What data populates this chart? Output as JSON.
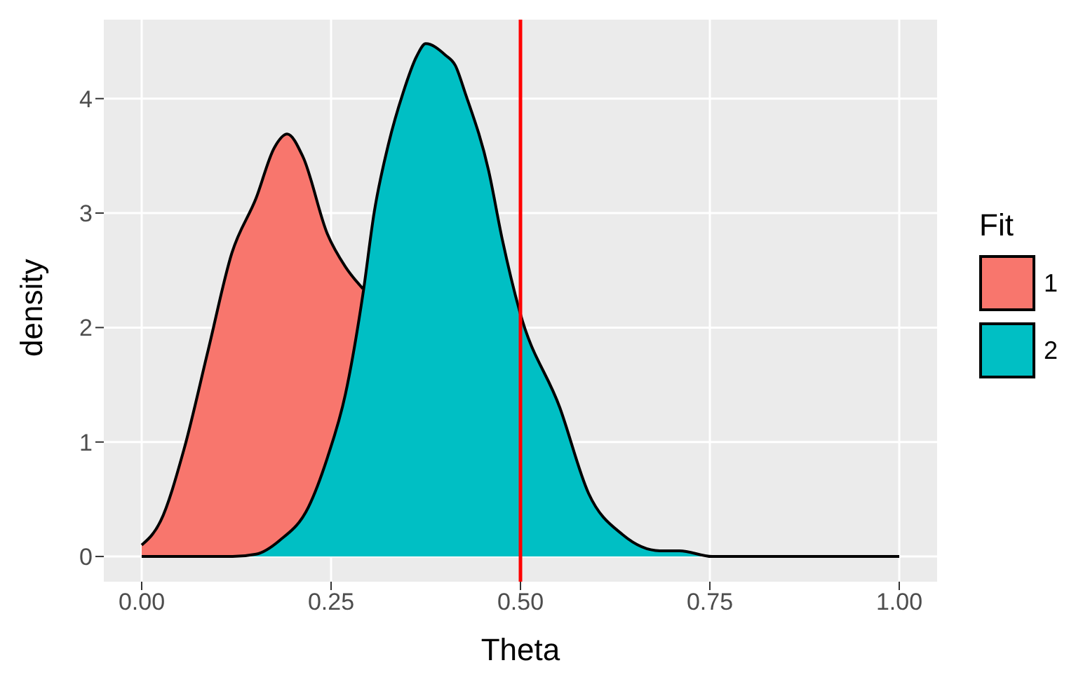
{
  "chart_data": {
    "type": "area",
    "xlabel": "Theta",
    "ylabel": "density",
    "legend_title": "Fit",
    "xlim": [
      -0.05,
      1.05
    ],
    "ylim": [
      -0.22,
      4.69
    ],
    "xticks": [
      {
        "value": 0,
        "label": "0.00"
      },
      {
        "value": 0.25,
        "label": "0.25"
      },
      {
        "value": 0.5,
        "label": "0.50"
      },
      {
        "value": 0.75,
        "label": "0.75"
      },
      {
        "value": 1,
        "label": "1.00"
      }
    ],
    "yticks": [
      0,
      1,
      2,
      3,
      4
    ],
    "grid": true,
    "legend": "right",
    "series": [
      {
        "name": "1",
        "color": "#f8766d",
        "x": [
          0,
          0.025,
          0.056,
          0.088,
          0.119,
          0.151,
          0.175,
          0.192,
          0.213,
          0.245,
          0.269,
          0.292
        ],
        "values": [
          0.1,
          0.31,
          0.94,
          1.81,
          2.65,
          3.13,
          3.57,
          3.69,
          3.49,
          2.82,
          2.53,
          2.34
        ]
      },
      {
        "name": "2",
        "color": "#00bfc4",
        "x": [
          0,
          0.12,
          0.151,
          0.182,
          0.22,
          0.245,
          0.269,
          0.292,
          0.307,
          0.326,
          0.345,
          0.363,
          0.375,
          0.401,
          0.414,
          0.427,
          0.458,
          0.476,
          0.499,
          0.552,
          0.59,
          0.635,
          0.684,
          0.71,
          0.753,
          1
        ],
        "values": [
          0,
          0,
          0.02,
          0.14,
          0.43,
          0.86,
          1.42,
          2.29,
          3.01,
          3.61,
          4.05,
          4.37,
          4.48,
          4.38,
          4.29,
          4.05,
          3.37,
          2.77,
          2.14,
          1.3,
          0.55,
          0.19,
          0.05,
          0.05,
          0,
          0
        ]
      }
    ],
    "ref_lines": [
      {
        "axis": "x",
        "value": 0.5,
        "color": "#ff0000"
      }
    ]
  }
}
